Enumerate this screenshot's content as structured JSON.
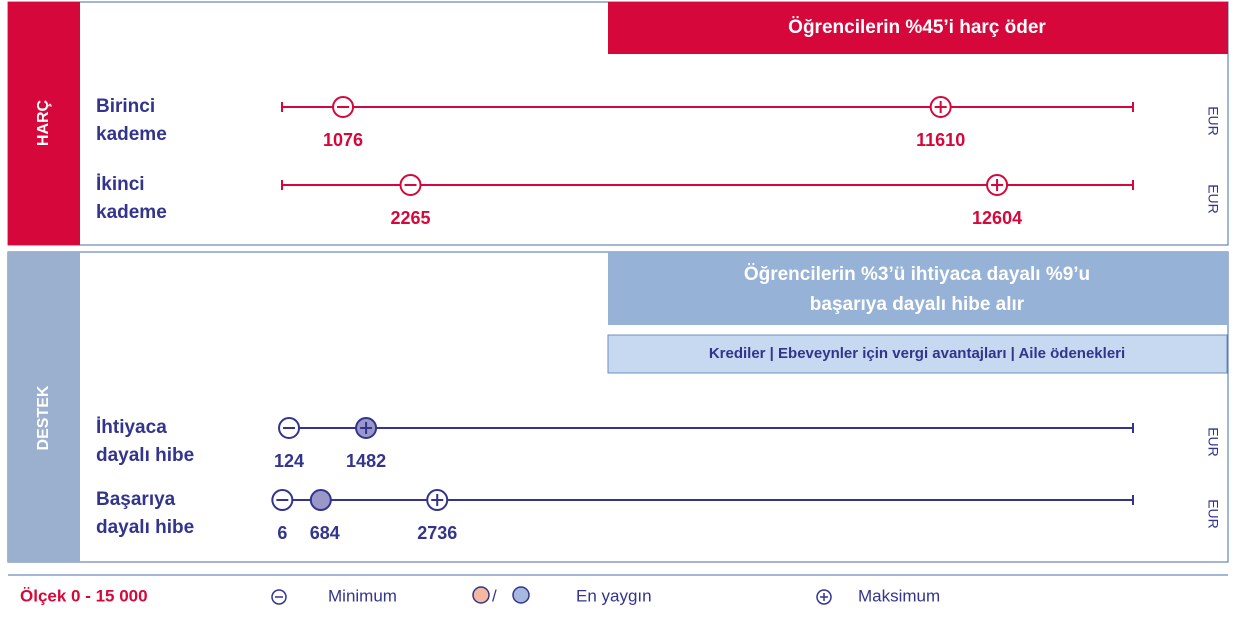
{
  "xlim": [
    0,
    15000
  ],
  "sections": [
    {
      "label": "HARÇ",
      "note": [
        "Öğrencilerin %45’i harç öder"
      ],
      "rows": [
        {
          "label": [
            "Birinci",
            "kademe"
          ],
          "min": 1076,
          "max": 11610,
          "unit": "EUR"
        },
        {
          "label": [
            "İkinci",
            "kademe"
          ],
          "min": 2265,
          "max": 12604,
          "unit": "EUR"
        }
      ]
    },
    {
      "label": "DESTEK",
      "note": [
        "Öğrencilerin %3’ü ihtiyaca dayalı %9’u",
        "başarıya dayalı hibe alır"
      ],
      "subnote": "Krediler | Ebeveynler için vergi avantajları | Aile ödenekleri",
      "rows": [
        {
          "label": [
            "İhtiyaca",
            "dayalı hibe"
          ],
          "min": 124,
          "max": 1482,
          "common": 1482,
          "unit": "EUR"
        },
        {
          "label": [
            "Başarıya",
            "dayalı hibe"
          ],
          "min": 6,
          "max": 2736,
          "common": 684,
          "unit": "EUR"
        }
      ]
    }
  ],
  "legend": {
    "scale": "Ölçek 0 - 15 000",
    "min": "Minimum",
    "common": "En yaygın",
    "max": "Maksimum"
  }
}
